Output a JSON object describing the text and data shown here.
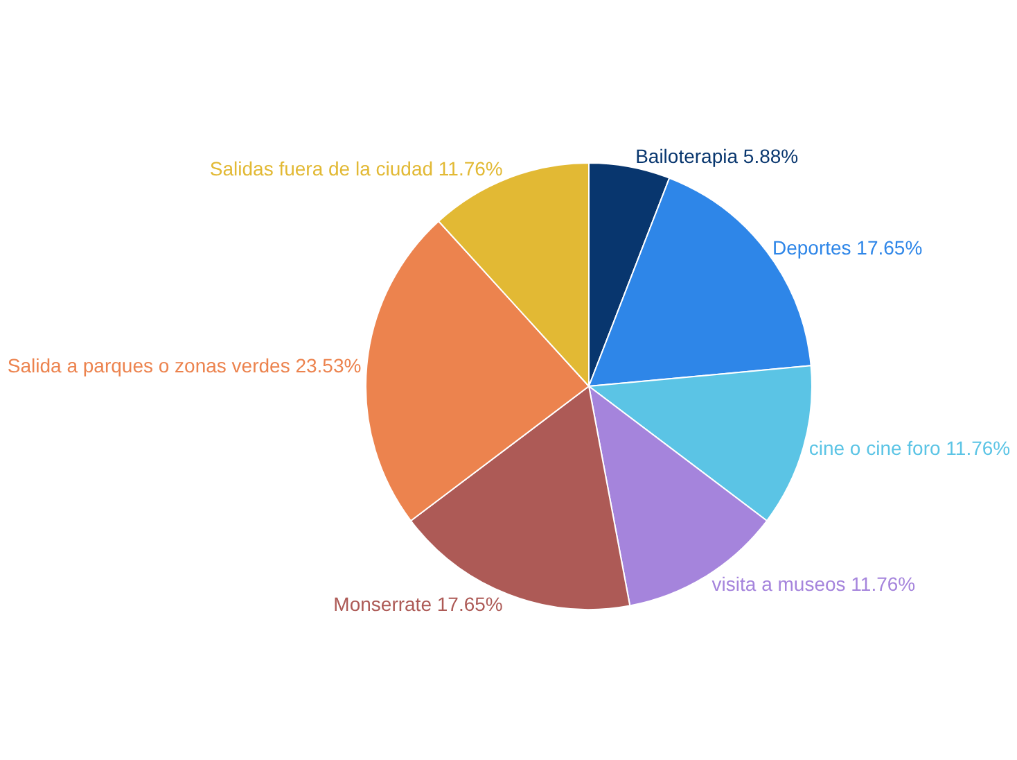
{
  "chart_data": {
    "type": "pie",
    "categories": [
      "Bailoterapia",
      "Deportes",
      "cine o cine foro",
      "visita a museos",
      "Monserrate",
      "Salida a parques o zonas verdes",
      "Salidas fuera de la ciudad"
    ],
    "values": [
      5.88,
      17.65,
      11.76,
      11.76,
      17.65,
      23.53,
      11.76
    ],
    "value_labels": [
      "5.88%",
      "17.65%",
      "11.76%",
      "11.76%",
      "17.65%",
      "23.53%",
      "11.76%"
    ],
    "colors": [
      "#08366e",
      "#2e86e8",
      "#5bc4e5",
      "#a584dc",
      "#ad5a56",
      "#ec834e",
      "#e2b934"
    ],
    "legend": false
  }
}
